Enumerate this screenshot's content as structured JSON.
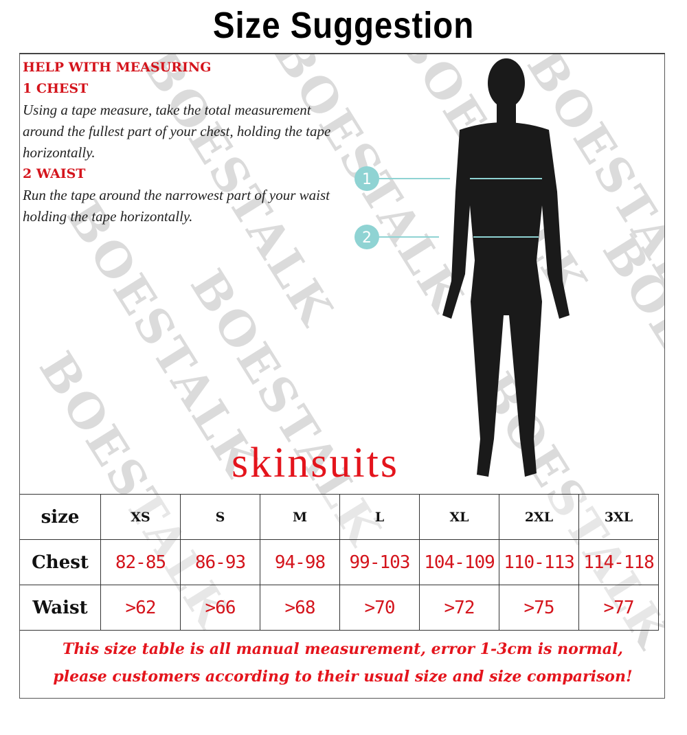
{
  "title": "Size Suggestion",
  "watermark": "BOESTALK",
  "help": {
    "heading": "HELP WITH MEASURING",
    "chest_heading": "1  CHEST",
    "chest_text": "Using a tape measure, take the total measurement around the fullest part of your chest, holding the tape horizontally.",
    "waist_heading": "2  WAIST",
    "waist_text": "Run the tape around the narrowest part of your waist holding the tape horizontally."
  },
  "markers": [
    "1",
    "2"
  ],
  "product": "skinsuits",
  "table": {
    "header_label": "size",
    "sizes": [
      "XS",
      "S",
      "M",
      "L",
      "XL",
      "2XL",
      "3XL"
    ],
    "rows": [
      {
        "label": "Chest",
        "values": [
          "82-85",
          "86-93",
          "94-98",
          "99-103",
          "104-109",
          "110-113",
          "114-118"
        ]
      },
      {
        "label": "Waist",
        "values": [
          ">62",
          ">66",
          ">68",
          ">70",
          ">72",
          ">75",
          ">77"
        ]
      }
    ]
  },
  "note": {
    "line1": "This size table is all manual measurement, error 1-3cm is normal,",
    "line2": "please customers according to their usual size and size comparison!"
  },
  "colors": {
    "accent_red": "#d4141c",
    "marker_teal": "#8fd3d3",
    "silhouette": "#1a1a1a"
  }
}
